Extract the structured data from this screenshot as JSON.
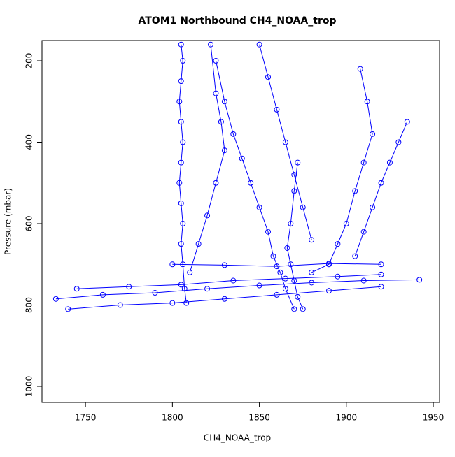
{
  "chart_data": {
    "type": "line",
    "title": "ATOM1 Northbound CH4_NOAA_trop",
    "x_label": "CH4_NOAA_trop",
    "y_label": "Pressure (mbar)",
    "color": "#0000ff",
    "markers": "open-circle",
    "y_inverted": true,
    "xlim": [
      1725,
      1953.6
    ],
    "ylim": [
      1039.5,
      150.2
    ],
    "xticks": [
      1750,
      1800,
      1850,
      1900,
      1950
    ],
    "yticks": [
      200,
      400,
      600,
      800,
      1000
    ],
    "series": [
      {
        "x": [
          1808,
          1807,
          1806,
          1805,
          1806,
          1805,
          1804,
          1805,
          1806,
          1805,
          1804,
          1805,
          1806,
          1805
        ],
        "values": [
          795,
          760,
          700,
          650,
          600,
          550,
          500,
          450,
          400,
          350,
          300,
          250,
          200,
          160
        ]
      },
      {
        "x": [
          1733,
          1760,
          1790,
          1820,
          1850,
          1880,
          1910,
          1942
        ],
        "values": [
          785,
          775,
          770,
          760,
          752,
          745,
          740,
          738
        ]
      },
      {
        "x": [
          1740,
          1770,
          1800,
          1830,
          1860,
          1890,
          1920
        ],
        "values": [
          810,
          800,
          795,
          785,
          775,
          765,
          755
        ]
      },
      {
        "x": [
          1870,
          1865,
          1862,
          1858,
          1855,
          1850,
          1845,
          1840,
          1835,
          1830,
          1825
        ],
        "values": [
          810,
          760,
          720,
          680,
          620,
          560,
          500,
          440,
          380,
          300,
          200
        ]
      },
      {
        "x": [
          1880,
          1890,
          1895,
          1900,
          1905,
          1910,
          1915,
          1912,
          1908
        ],
        "values": [
          720,
          700,
          650,
          600,
          520,
          450,
          380,
          300,
          220
        ]
      },
      {
        "x": [
          1935,
          1930,
          1925,
          1920,
          1915,
          1910,
          1905
        ],
        "values": [
          350,
          400,
          450,
          500,
          560,
          620,
          680
        ]
      },
      {
        "x": [
          1800,
          1830,
          1860,
          1890,
          1920
        ],
        "values": [
          700,
          702,
          705,
          698,
          700
        ]
      },
      {
        "x": [
          1875,
          1872,
          1870,
          1868,
          1866,
          1868,
          1870,
          1872
        ],
        "values": [
          810,
          780,
          740,
          700,
          660,
          600,
          520,
          450
        ]
      },
      {
        "x": [
          1810,
          1815,
          1820,
          1825,
          1830,
          1828,
          1825,
          1822
        ],
        "values": [
          720,
          650,
          580,
          500,
          420,
          350,
          280,
          160
        ]
      },
      {
        "x": [
          1850,
          1855,
          1860,
          1865,
          1870,
          1875,
          1880
        ],
        "values": [
          160,
          240,
          320,
          400,
          480,
          560,
          640
        ]
      },
      {
        "x": [
          1745,
          1775,
          1805,
          1835,
          1865,
          1895,
          1920
        ],
        "values": [
          760,
          755,
          750,
          740,
          735,
          730,
          725
        ]
      }
    ]
  }
}
